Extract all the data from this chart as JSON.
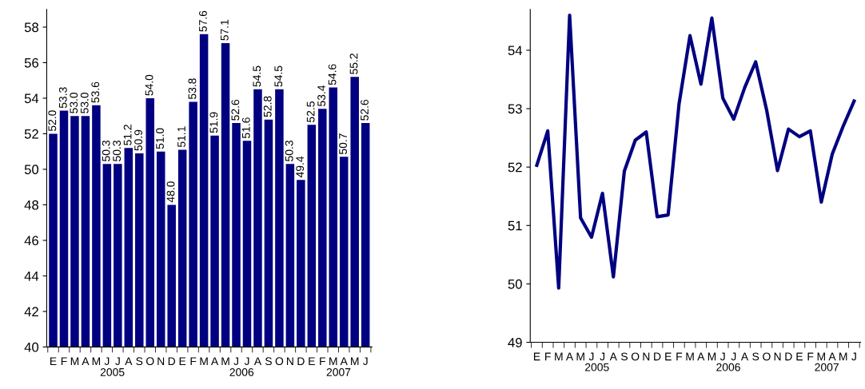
{
  "chart_data": [
    {
      "type": "bar",
      "categories": [
        "E",
        "F",
        "M",
        "A",
        "M",
        "J",
        "J",
        "A",
        "S",
        "O",
        "N",
        "D",
        "E",
        "F",
        "M",
        "A",
        "M",
        "J",
        "J",
        "A",
        "S",
        "O",
        "N",
        "D",
        "E",
        "F",
        "M",
        "A",
        "M",
        "J"
      ],
      "values": [
        52.0,
        53.3,
        53.0,
        53.0,
        53.6,
        50.3,
        50.3,
        51.2,
        50.9,
        54.0,
        51.0,
        48.0,
        51.1,
        53.8,
        57.6,
        51.9,
        57.1,
        52.6,
        51.6,
        54.5,
        52.8,
        54.5,
        50.3,
        49.4,
        52.5,
        53.4,
        54.6,
        50.7,
        55.2,
        52.6
      ],
      "value_labels": [
        "52.0",
        "53.3",
        "53.0",
        "53.0",
        "53.6",
        "50.3",
        "50.3",
        "51.2",
        "50.9",
        "54.0",
        "51.0",
        "48.0",
        "51.1",
        "53.8",
        "57.6",
        "51.9",
        "57.1",
        "52.6",
        "51.6",
        "54.5",
        "52.8",
        "54.5",
        "50.3",
        "49.4",
        "52.5",
        "53.4",
        "54.6",
        "50.7",
        "55.2",
        "52.6"
      ],
      "color": "#000080",
      "ylim": [
        40,
        59
      ],
      "yticks": [
        40,
        42,
        44,
        46,
        48,
        50,
        52,
        54,
        56,
        58
      ],
      "grid": false,
      "legend": false,
      "annotations": [
        "2005",
        "2006",
        "2007"
      ]
    },
    {
      "type": "line",
      "categories": [
        "E",
        "F",
        "M",
        "A",
        "M",
        "J",
        "J",
        "A",
        "S",
        "O",
        "N",
        "D",
        "E",
        "F",
        "M",
        "A",
        "M",
        "J",
        "J",
        "A",
        "S",
        "O",
        "N",
        "D",
        "E",
        "F",
        "M",
        "A",
        "M",
        "J"
      ],
      "values": [
        52.03,
        52.62,
        49.93,
        54.6,
        51.13,
        50.8,
        51.55,
        50.12,
        51.93,
        52.46,
        52.6,
        51.15,
        51.18,
        53.08,
        54.25,
        53.42,
        54.55,
        53.18,
        52.82,
        53.36,
        53.8,
        52.98,
        51.94,
        52.65,
        52.52,
        52.62,
        51.4,
        52.22,
        52.7,
        53.13
      ],
      "color": "#000080",
      "marker": "none",
      "line_style": "solid",
      "ylim": [
        49,
        54.7
      ],
      "yticks": [
        49,
        50,
        51,
        52,
        53,
        54
      ],
      "grid": false,
      "legend": false,
      "annotations": [
        "2005",
        "2006",
        "2007"
      ]
    }
  ]
}
